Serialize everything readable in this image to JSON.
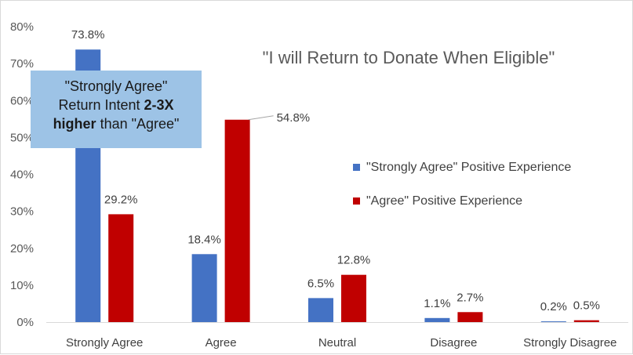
{
  "colors": {
    "series1": "#4472c4",
    "series2": "#c00000",
    "callout_bg": "#9dc3e6"
  },
  "chart_data": {
    "type": "bar",
    "title": "\"I will Return to Donate When Eligible\"",
    "xlabel": "",
    "ylabel": "",
    "categories": [
      "Strongly Agree",
      "Agree",
      "Neutral",
      "Disagree",
      "Strongly Disagree"
    ],
    "ylim": [
      0,
      80
    ],
    "yticks": [
      "0%",
      "10%",
      "20%",
      "30%",
      "40%",
      "50%",
      "60%",
      "70%",
      "80%"
    ],
    "series": [
      {
        "name": "\"Strongly Agree\" Positive Experience",
        "values": [
          73.8,
          18.4,
          6.5,
          1.1,
          0.2
        ],
        "labels": [
          "73.8%",
          "18.4%",
          "6.5%",
          "1.1%",
          "0.2%"
        ]
      },
      {
        "name": "\"Agree\" Positive Experience",
        "values": [
          29.2,
          54.8,
          12.8,
          2.7,
          0.5
        ],
        "labels": [
          "29.2%",
          "54.8%",
          "12.8%",
          "2.7%",
          "0.5%"
        ]
      }
    ],
    "legend_position": "right",
    "grid": false
  },
  "callout": {
    "line1": "\"Strongly Agree\"",
    "line2_prefix": "Return Intent ",
    "line2_bold": "2-3X",
    "line3_bold": "higher",
    "line3_suffix": " than \"Agree\""
  }
}
